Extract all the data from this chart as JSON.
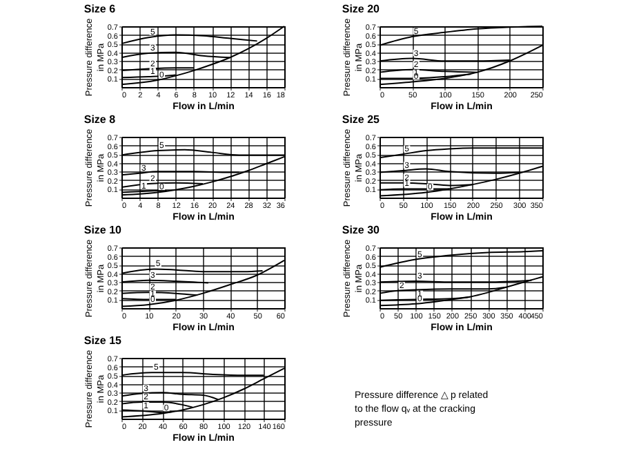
{
  "chart_data": [
    {
      "type": "line",
      "title": "Size 6",
      "xlabel": "Flow in L/min",
      "ylabel": "Pressure difference\nin MPa",
      "xlim": [
        0,
        18
      ],
      "xticks": [
        0,
        2,
        4,
        6,
        8,
        10,
        12,
        14,
        16,
        18
      ],
      "ylim": [
        0,
        0.7
      ],
      "yticks": [
        0.1,
        0.2,
        0.3,
        0.4,
        0.5,
        0.6,
        0.7
      ],
      "grid": true,
      "line_style": "solid",
      "series": [
        {
          "name": "0",
          "color": "#000000",
          "x": [
            0,
            4,
            6,
            8,
            10,
            12,
            14,
            16,
            18
          ],
          "values": [
            0.03,
            0.08,
            0.13,
            0.19,
            0.26,
            0.34,
            0.44,
            0.56,
            0.7
          ]
        },
        {
          "name": "1",
          "color": "#000000",
          "x": [
            0,
            3,
            5,
            6
          ],
          "values": [
            0.11,
            0.12,
            0.13,
            0.14
          ]
        },
        {
          "name": "2",
          "color": "#000000",
          "x": [
            0,
            3,
            6,
            8
          ],
          "values": [
            0.19,
            0.21,
            0.22,
            0.22
          ]
        },
        {
          "name": "3",
          "color": "#000000",
          "x": [
            0,
            3,
            6,
            9,
            12
          ],
          "values": [
            0.34,
            0.39,
            0.4,
            0.36,
            0.34
          ]
        },
        {
          "name": "5",
          "color": "#000000",
          "x": [
            0,
            3,
            6,
            9,
            12,
            15
          ],
          "values": [
            0.5,
            0.57,
            0.6,
            0.59,
            0.56,
            0.53
          ]
        }
      ]
    },
    {
      "type": "line",
      "title": "Size 20",
      "xlabel": "Flow in L/min",
      "ylabel": "Pressure difference\nin MPa",
      "xlim": [
        0,
        250
      ],
      "xticks": [
        0,
        50,
        100,
        150,
        200,
        250
      ],
      "ylim": [
        0,
        0.7
      ],
      "yticks": [
        0.1,
        0.2,
        0.3,
        0.4,
        0.5,
        0.6,
        0.7
      ],
      "grid": true,
      "line_style": "solid",
      "series": [
        {
          "name": "0",
          "color": "#000000",
          "x": [
            0,
            50,
            100,
            150,
            200,
            250
          ],
          "values": [
            0.03,
            0.06,
            0.1,
            0.17,
            0.3,
            0.48
          ]
        },
        {
          "name": "1",
          "color": "#000000",
          "x": [
            0,
            50,
            100,
            140
          ],
          "values": [
            0.1,
            0.1,
            0.12,
            0.15
          ]
        },
        {
          "name": "2",
          "color": "#000000",
          "x": [
            0,
            50,
            100,
            150
          ],
          "values": [
            0.17,
            0.2,
            0.18,
            0.17
          ]
        },
        {
          "name": "3",
          "color": "#000000",
          "x": [
            0,
            50,
            100,
            150,
            200
          ],
          "values": [
            0.3,
            0.33,
            0.3,
            0.3,
            0.31
          ]
        },
        {
          "name": "5",
          "color": "#000000",
          "x": [
            0,
            50,
            100,
            150,
            200,
            250
          ],
          "values": [
            0.48,
            0.58,
            0.63,
            0.67,
            0.69,
            0.7
          ]
        }
      ]
    },
    {
      "type": "line",
      "title": "Size 8",
      "xlabel": "Flow in L/min",
      "ylabel": "Pressure difference\nin MPa",
      "xlim": [
        0,
        36
      ],
      "xticks": [
        0,
        4,
        8,
        12,
        16,
        20,
        24,
        28,
        32,
        36
      ],
      "ylim": [
        0,
        0.7
      ],
      "yticks": [
        0.1,
        0.2,
        0.3,
        0.4,
        0.5,
        0.6,
        0.7
      ],
      "grid": true,
      "line_style": "solid",
      "series": [
        {
          "name": "0",
          "color": "#000000",
          "x": [
            0,
            8,
            12,
            16,
            20,
            24,
            28,
            32,
            36
          ],
          "values": [
            0.03,
            0.06,
            0.09,
            0.13,
            0.18,
            0.24,
            0.31,
            0.39,
            0.47
          ]
        },
        {
          "name": "1",
          "color": "#000000",
          "x": [
            0,
            4,
            8,
            10
          ],
          "values": [
            0.06,
            0.07,
            0.08,
            0.08
          ]
        },
        {
          "name": "2",
          "color": "#000000",
          "x": [
            0,
            6,
            12,
            18
          ],
          "values": [
            0.12,
            0.16,
            0.17,
            0.16
          ]
        },
        {
          "name": "3",
          "color": "#000000",
          "x": [
            0,
            4,
            8,
            16,
            24,
            26
          ],
          "values": [
            0.26,
            0.28,
            0.3,
            0.3,
            0.29,
            0.29
          ]
        },
        {
          "name": "5",
          "color": "#000000",
          "x": [
            0,
            8,
            14,
            20,
            26,
            32,
            36
          ],
          "values": [
            0.49,
            0.54,
            0.55,
            0.52,
            0.49,
            0.49,
            0.49
          ]
        }
      ]
    },
    {
      "type": "line",
      "title": "Size 25",
      "xlabel": "Flow in L/min",
      "ylabel": "Pressure difference\nin MPa",
      "xlim": [
        0,
        350
      ],
      "xticks": [
        0,
        50,
        100,
        150,
        200,
        250,
        300,
        350
      ],
      "ylim": [
        0,
        0.7
      ],
      "yticks": [
        0.1,
        0.2,
        0.3,
        0.4,
        0.5,
        0.6,
        0.7
      ],
      "grid": true,
      "line_style": "solid",
      "series": [
        {
          "name": "0",
          "color": "#000000",
          "x": [
            0,
            100,
            150,
            200,
            250,
            300,
            350
          ],
          "values": [
            0.02,
            0.06,
            0.1,
            0.15,
            0.21,
            0.28,
            0.36
          ]
        },
        {
          "name": "1",
          "color": "#000000",
          "x": [
            0,
            50,
            100,
            150
          ],
          "values": [
            0.09,
            0.1,
            0.1,
            0.1
          ]
        },
        {
          "name": "2",
          "color": "#000000",
          "x": [
            0,
            50,
            100,
            150,
            200
          ],
          "values": [
            0.17,
            0.17,
            0.16,
            0.14,
            0.15
          ]
        },
        {
          "name": "3",
          "color": "#000000",
          "x": [
            0,
            50,
            100,
            150,
            250,
            300
          ],
          "values": [
            0.29,
            0.31,
            0.33,
            0.3,
            0.28,
            0.29
          ]
        },
        {
          "name": "5",
          "color": "#000000",
          "x": [
            0,
            50,
            100,
            150,
            200,
            350
          ],
          "values": [
            0.46,
            0.5,
            0.54,
            0.56,
            0.57,
            0.57
          ]
        }
      ]
    },
    {
      "type": "line",
      "title": "Size 10",
      "xlabel": "Flow in L/min",
      "ylabel": "Pressure difference\nin MPa",
      "xlim": [
        0,
        60
      ],
      "xticks": [
        0,
        10,
        20,
        30,
        40,
        50,
        60
      ],
      "ylim": [
        0,
        0.7
      ],
      "yticks": [
        0.1,
        0.2,
        0.3,
        0.4,
        0.5,
        0.6,
        0.7
      ],
      "grid": true,
      "line_style": "solid",
      "series": [
        {
          "name": "0",
          "color": "#000000",
          "x": [
            0,
            10,
            20,
            30,
            40,
            50,
            60
          ],
          "values": [
            0.02,
            0.04,
            0.09,
            0.17,
            0.27,
            0.38,
            0.55
          ]
        },
        {
          "name": "1",
          "color": "#000000",
          "x": [
            0,
            10,
            20
          ],
          "values": [
            0.11,
            0.1,
            0.1
          ]
        },
        {
          "name": "2",
          "color": "#000000",
          "x": [
            0,
            10,
            20,
            28
          ],
          "values": [
            0.17,
            0.18,
            0.17,
            0.15
          ]
        },
        {
          "name": "3",
          "color": "#000000",
          "x": [
            0,
            10,
            20,
            32
          ],
          "values": [
            0.3,
            0.32,
            0.31,
            0.29
          ]
        },
        {
          "name": "5",
          "color": "#000000",
          "x": [
            0,
            12,
            20,
            30,
            45,
            52
          ],
          "values": [
            0.4,
            0.45,
            0.44,
            0.42,
            0.42,
            0.43
          ]
        }
      ]
    },
    {
      "type": "line",
      "title": "Size 30",
      "xlabel": "Flow in L/min",
      "ylabel": "Pressure difference\nin MPa",
      "xlim": [
        0,
        450
      ],
      "xticks": [
        0,
        50,
        100,
        150,
        200,
        250,
        300,
        350,
        400,
        450
      ],
      "ylim": [
        0,
        0.7
      ],
      "yticks": [
        0.1,
        0.2,
        0.3,
        0.4,
        0.5,
        0.6,
        0.7
      ],
      "grid": true,
      "line_style": "solid",
      "series": [
        {
          "name": "0",
          "color": "#000000",
          "x": [
            0,
            100,
            200,
            250,
            300,
            350,
            400,
            450
          ],
          "values": [
            0.03,
            0.05,
            0.1,
            0.13,
            0.18,
            0.24,
            0.3,
            0.36
          ]
        },
        {
          "name": "1",
          "color": "#000000",
          "x": [
            0,
            100,
            200,
            250
          ],
          "values": [
            0.09,
            0.1,
            0.11,
            0.13
          ]
        },
        {
          "name": "2",
          "color": "#000000",
          "x": [
            0,
            50,
            100,
            200,
            300,
            350
          ],
          "values": [
            0.17,
            0.2,
            0.21,
            0.22,
            0.22,
            0.24
          ]
        },
        {
          "name": "3",
          "color": "#000000",
          "x": [
            0,
            100,
            200,
            300,
            420
          ],
          "values": [
            0.3,
            0.31,
            0.3,
            0.3,
            0.32
          ]
        },
        {
          "name": "5",
          "color": "#000000",
          "x": [
            0,
            100,
            200,
            300,
            400,
            450
          ],
          "values": [
            0.47,
            0.56,
            0.61,
            0.64,
            0.65,
            0.66
          ]
        }
      ]
    },
    {
      "type": "line",
      "title": "Size 15",
      "xlabel": "Flow in L/min",
      "ylabel": "Pressure difference\nin MPa",
      "xlim": [
        0,
        160
      ],
      "xticks": [
        0,
        20,
        40,
        60,
        80,
        100,
        120,
        140,
        160
      ],
      "ylim": [
        0,
        0.7
      ],
      "yticks": [
        0.1,
        0.2,
        0.3,
        0.4,
        0.5,
        0.6,
        0.7
      ],
      "grid": true,
      "line_style": "solid",
      "series": [
        {
          "name": "0",
          "color": "#000000",
          "x": [
            0,
            40,
            60,
            80,
            100,
            120,
            140,
            160
          ],
          "values": [
            0.02,
            0.06,
            0.1,
            0.16,
            0.24,
            0.34,
            0.46,
            0.58
          ]
        },
        {
          "name": "1",
          "color": "#000000",
          "x": [
            0,
            20,
            40,
            50
          ],
          "values": [
            0.1,
            0.09,
            0.07,
            0.08
          ]
        },
        {
          "name": "2",
          "color": "#000000",
          "x": [
            0,
            20,
            40,
            60,
            70
          ],
          "values": [
            0.17,
            0.19,
            0.19,
            0.16,
            0.13
          ]
        },
        {
          "name": "3",
          "color": "#000000",
          "x": [
            0,
            20,
            40,
            60,
            80,
            95
          ],
          "values": [
            0.26,
            0.29,
            0.3,
            0.28,
            0.27,
            0.22
          ]
        },
        {
          "name": "5",
          "color": "#000000",
          "x": [
            0,
            30,
            60,
            90,
            120,
            140
          ],
          "values": [
            0.5,
            0.53,
            0.53,
            0.51,
            0.5,
            0.5
          ]
        }
      ]
    },
    {
      "type": "other",
      "annotations": [
        "Pressure difference △ p related\nto the flow qᵥ at the cracking\npressure"
      ]
    }
  ]
}
